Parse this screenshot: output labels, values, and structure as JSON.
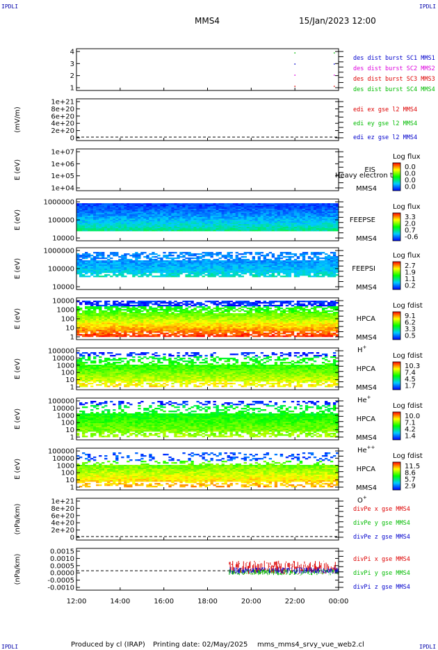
{
  "header": {
    "corner_tl": "IPDLI",
    "corner_tr": "IPDLI",
    "corner_bl": "IPDLI",
    "corner_br": "IPDLI",
    "spacecraft": "MMS4",
    "datetime": "15/Jan/2023 12:00"
  },
  "footer": {
    "produced": "Produced by cl (IRAP)",
    "printed": "Printing date: 02/May/2025",
    "script": "mms_mms4_srvy_vue_web2.cl"
  },
  "colors": {
    "blue": "#0000cc",
    "red": "#dd0000",
    "green": "#00bb00",
    "magenta": "#dd00dd"
  },
  "chart_data": {
    "type": "multi-panel time series",
    "x_ticks": [
      "12:00",
      "14:00",
      "16:00",
      "18:00",
      "20:00",
      "22:00",
      "00:00"
    ],
    "x_range_hours": [
      12,
      24
    ],
    "panels": [
      {
        "id": "burst",
        "type": "scatter",
        "ylabel": "",
        "yticks": [
          "4",
          "3",
          "2",
          "1"
        ],
        "legend": [
          {
            "text": "des dist burst SC1 MMS1",
            "color": "#0000cc"
          },
          {
            "text": "des dist burst SC2 MMS2",
            "color": "#dd00dd"
          },
          {
            "text": "des dist burst SC3 MMS3",
            "color": "#dd0000"
          },
          {
            "text": "des dist burst SC4 MMS4",
            "color": "#00bb00"
          }
        ],
        "points": [
          [
            22.0,
            4
          ],
          [
            22.0,
            3
          ],
          [
            22.0,
            2
          ],
          [
            22.0,
            1
          ],
          [
            23.8,
            4
          ],
          [
            23.8,
            3
          ],
          [
            23.8,
            2
          ],
          [
            23.8,
            1
          ]
        ]
      },
      {
        "id": "edi_e",
        "type": "line",
        "ylabel": "(mV/m)",
        "yticks": [
          "1e+21",
          "8e+20",
          "6e+20",
          "4e+20",
          "2e+20",
          "0"
        ],
        "legend": [
          {
            "text": "edi ex gse l2 MMS4",
            "color": "#dd0000"
          },
          {
            "text": "edi ey gse l2 MMS4",
            "color": "#00bb00"
          },
          {
            "text": "edi ez gse l2 MMS4",
            "color": "#0000cc"
          }
        ]
      },
      {
        "id": "eis",
        "type": "heatmap",
        "ylabel": "E (eV)",
        "yticks": [
          "1e+07",
          "1e+06",
          "1e+05",
          "1e+04"
        ],
        "labels": [
          "EIS",
          "MMS4"
        ],
        "overlay": "Heavy electron to",
        "colorbar_title": "Log flux",
        "colorbar_ticks": [
          "0.0",
          "0.0",
          "0.0",
          "0.0"
        ]
      },
      {
        "id": "feepse",
        "type": "heatmap",
        "ylabel": "E (eV)",
        "yticks": [
          "1000000",
          "100000",
          "10000"
        ],
        "labels": [
          "FEEPSE",
          "MMS4"
        ],
        "colorbar_title": "Log flux",
        "colorbar_ticks": [
          "3.3",
          "2.0",
          "0.7",
          "-0.6"
        ]
      },
      {
        "id": "feepsi",
        "type": "heatmap",
        "ylabel": "E (eV)",
        "yticks": [
          "1000000",
          "100000",
          "10000"
        ],
        "labels": [
          "FEEPSI",
          "MMS4"
        ],
        "colorbar_title": "Log flux",
        "colorbar_ticks": [
          "2.7",
          "1.9",
          "1.1",
          "0.2"
        ]
      },
      {
        "id": "hpca_h",
        "type": "heatmap",
        "ylabel": "E (eV)",
        "yticks": [
          "10000",
          "1000",
          "100",
          "10",
          "1"
        ],
        "labels": [
          "HPCA",
          "MMS4"
        ],
        "species": "H",
        "charge": "+",
        "colorbar_title": "Log fdist",
        "colorbar_ticks": [
          "9.1",
          "6.2",
          "3.3",
          "0.5"
        ]
      },
      {
        "id": "hpca_he",
        "type": "heatmap",
        "ylabel": "E (eV)",
        "yticks": [
          "100000",
          "10000",
          "1000",
          "100",
          "10",
          "1"
        ],
        "labels": [
          "HPCA",
          "MMS4"
        ],
        "species": "He",
        "charge": "+",
        "colorbar_title": "Log fdist",
        "colorbar_ticks": [
          "10.3",
          "7.4",
          "4.5",
          "1.7"
        ]
      },
      {
        "id": "hpca_hepp",
        "type": "heatmap",
        "ylabel": "E (eV)",
        "yticks": [
          "100000",
          "10000",
          "1000",
          "100",
          "10",
          "1"
        ],
        "labels": [
          "HPCA",
          "MMS4"
        ],
        "species": "He",
        "charge": "++",
        "colorbar_title": "Log fdist",
        "colorbar_ticks": [
          "10.0",
          "7.1",
          "4.2",
          "1.4"
        ]
      },
      {
        "id": "hpca_o",
        "type": "heatmap",
        "ylabel": "E (eV)",
        "yticks": [
          "100000",
          "10000",
          "1000",
          "100",
          "10",
          "1"
        ],
        "labels": [
          "HPCA",
          "MMS4"
        ],
        "species": "O",
        "charge": "+",
        "colorbar_title": "Log fdist",
        "colorbar_ticks": [
          "11.5",
          "8.6",
          "5.7",
          "2.9"
        ]
      },
      {
        "id": "divpe",
        "type": "line",
        "ylabel": "(nPa/km)",
        "yticks": [
          "1e+21",
          "8e+20",
          "6e+20",
          "4e+20",
          "2e+20",
          "0"
        ],
        "legend": [
          {
            "text": "divPe x gse MMS4",
            "color": "#dd0000"
          },
          {
            "text": "divPe y gse MMS4",
            "color": "#00bb00"
          },
          {
            "text": "divPe z gse MMS4",
            "color": "#0000cc"
          }
        ]
      },
      {
        "id": "divpi",
        "type": "line",
        "ylabel": "(nPa/km)",
        "yticks": [
          "0.0015",
          "0.0010",
          "0.0005",
          "0.0000",
          "-0.0005",
          "-0.0010"
        ],
        "ylim": [
          -0.0013,
          0.0015
        ],
        "data_start_hour": 19.0,
        "legend": [
          {
            "text": "divPi x gse MMS4",
            "color": "#dd0000"
          },
          {
            "text": "divPi y gse MMS4",
            "color": "#00bb00"
          },
          {
            "text": "divPi z gse MMS4",
            "color": "#0000cc"
          }
        ]
      }
    ]
  }
}
